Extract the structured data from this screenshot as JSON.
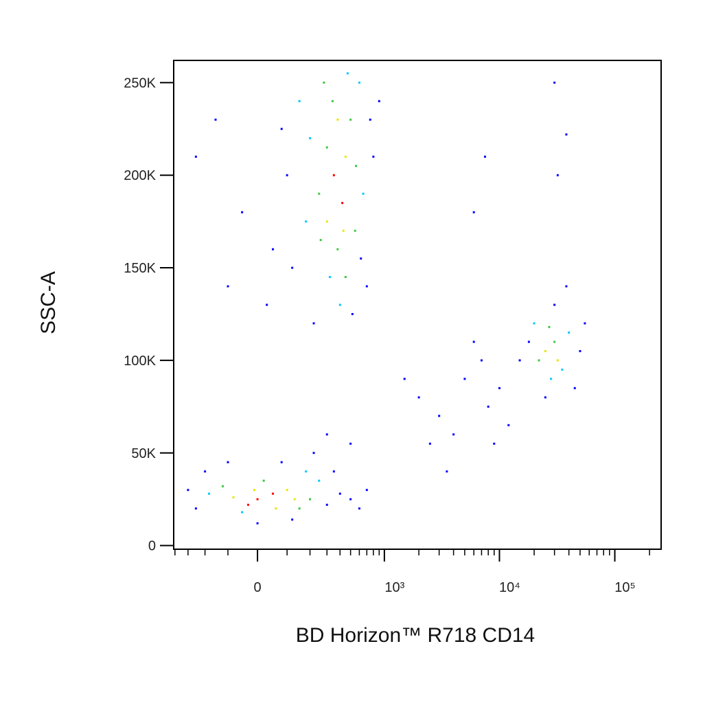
{
  "chart_data": {
    "type": "scatter",
    "x_label": "BD Horizon™ R718 CD14",
    "y_label": "SSC-A",
    "xscale": "biexponential",
    "xlim": [
      -411,
      252000
    ],
    "ylim": [
      -2000,
      262000
    ],
    "xticks": [
      0,
      {
        "value": 1000,
        "label": "10³"
      },
      {
        "value": 10000,
        "label": "10⁴"
      },
      {
        "value": 100000,
        "label": "10⁵"
      }
    ],
    "xminorticks": [
      -400,
      -300,
      -200,
      -100,
      100,
      200,
      300,
      400,
      500,
      600,
      700,
      800,
      900,
      2000,
      3000,
      4000,
      5000,
      6000,
      7000,
      8000,
      9000,
      20000,
      30000,
      40000,
      50000,
      60000,
      70000,
      80000,
      90000,
      200000
    ],
    "yticks": [
      0,
      {
        "value": 50000,
        "label": "50K"
      },
      {
        "value": 100000,
        "label": "100K"
      },
      {
        "value": 150000,
        "label": "150K"
      },
      {
        "value": 200000,
        "label": "200K"
      },
      {
        "value": 250000,
        "label": "250K"
      }
    ],
    "x": [
      350,
      420,
      300,
      450,
      380,
      250,
      500,
      200,
      550,
      320,
      150,
      600,
      100,
      50,
      -50,
      700,
      800,
      900,
      -150,
      30,
      400,
      280,
      470,
      650,
      120,
      -100,
      220,
      520,
      380,
      300,
      430,
      260,
      560,
      180,
      340,
      750,
      -250,
      620,
      80,
      450,
      0,
      50,
      -30,
      100,
      -80,
      150,
      -120,
      200,
      20,
      -50,
      250,
      -180,
      300,
      -250,
      350,
      400,
      -200,
      80,
      -300,
      500,
      600,
      0,
      120,
      -100,
      180,
      60,
      -10,
      130,
      220,
      300,
      500,
      700,
      25000,
      30000,
      22000,
      35000,
      20000,
      40000,
      28000,
      18000,
      50000,
      45000,
      15000,
      30000,
      25000,
      55000,
      38000,
      32000,
      27000,
      2000,
      3000,
      5000,
      7000,
      4000,
      8000,
      10000,
      6000,
      12000,
      2500,
      3500,
      9000,
      1500,
      6000,
      7500,
      38000,
      32000,
      30000
    ],
    "y": [
      200000,
      185000,
      175000,
      210000,
      160000,
      190000,
      230000,
      220000,
      170000,
      145000,
      240000,
      250000,
      200000,
      160000,
      180000,
      140000,
      210000,
      240000,
      230000,
      130000,
      130000,
      250000,
      255000,
      190000,
      150000,
      140000,
      120000,
      125000,
      230000,
      215000,
      170000,
      165000,
      205000,
      175000,
      240000,
      230000,
      210000,
      155000,
      225000,
      145000,
      25000,
      28000,
      22000,
      30000,
      26000,
      20000,
      32000,
      25000,
      35000,
      18000,
      35000,
      28000,
      22000,
      20000,
      40000,
      28000,
      40000,
      45000,
      30000,
      25000,
      20000,
      12000,
      14000,
      45000,
      40000,
      20000,
      30000,
      25000,
      50000,
      60000,
      55000,
      30000,
      105000,
      110000,
      100000,
      95000,
      120000,
      115000,
      90000,
      110000,
      105000,
      85000,
      100000,
      130000,
      80000,
      120000,
      140000,
      100000,
      118000,
      80000,
      70000,
      90000,
      100000,
      60000,
      75000,
      85000,
      110000,
      65000,
      55000,
      40000,
      55000,
      90000,
      180000,
      210000,
      222000,
      200000,
      250000
    ],
    "colors": [
      "#ff0000",
      "#ff0000",
      "#e6e600",
      "#e6e600",
      "#3cc83c",
      "#3cc83c",
      "#3cc83c",
      "#00c8ff",
      "#3cc83c",
      "#00c8ff",
      "#00c8ff",
      "#00c8ff",
      "#0000ff",
      "#0000ff",
      "#0000ff",
      "#0000ff",
      "#0000ff",
      "#0000ff",
      "#0000ff",
      "#0000ff",
      "#00c8ff",
      "#3cc83c",
      "#00c8ff",
      "#00c8ff",
      "#0000ff",
      "#0000ff",
      "#0000ff",
      "#0000ff",
      "#e6e600",
      "#3cc83c",
      "#e6e600",
      "#3cc83c",
      "#3cc83c",
      "#00c8ff",
      "#3cc83c",
      "#0000ff",
      "#0000ff",
      "#0000ff",
      "#0000ff",
      "#3cc83c",
      "#ff0000",
      "#ff0000",
      "#ff0000",
      "#e6e600",
      "#e6e600",
      "#3cc83c",
      "#3cc83c",
      "#3cc83c",
      "#3cc83c",
      "#00c8ff",
      "#00c8ff",
      "#00c8ff",
      "#0000ff",
      "#0000ff",
      "#0000ff",
      "#0000ff",
      "#0000ff",
      "#0000ff",
      "#0000ff",
      "#0000ff",
      "#0000ff",
      "#0000ff",
      "#0000ff",
      "#0000ff",
      "#00c8ff",
      "#e6e600",
      "#e6e600",
      "#e6e600",
      "#0000ff",
      "#0000ff",
      "#0000ff",
      "#0000ff",
      "#e6e600",
      "#3cc83c",
      "#3cc83c",
      "#00c8ff",
      "#00c8ff",
      "#00c8ff",
      "#00c8ff",
      "#0000ff",
      "#0000ff",
      "#0000ff",
      "#0000ff",
      "#0000ff",
      "#0000ff",
      "#0000ff",
      "#0000ff",
      "#e6e600",
      "#3cc83c",
      "#0000ff",
      "#0000ff",
      "#0000ff",
      "#0000ff",
      "#0000ff",
      "#0000ff",
      "#0000ff",
      "#0000ff",
      "#0000ff",
      "#0000ff",
      "#0000ff",
      "#0000ff",
      "#0000ff",
      "#0000ff",
      "#0000ff",
      "#0000ff",
      "#0000ff",
      "#0000ff"
    ]
  }
}
